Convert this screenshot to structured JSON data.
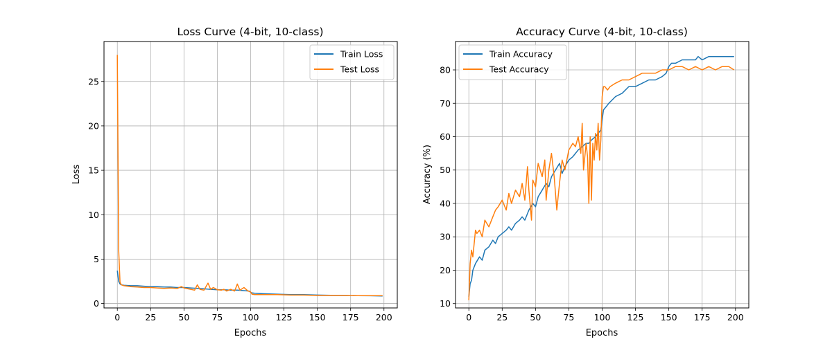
{
  "colors": {
    "train": "#1f77b4",
    "test": "#ff7f0e",
    "grid": "#b0b0b0"
  },
  "chart_data": [
    {
      "type": "line",
      "title": "Loss Curve (4-bit, 10-class)",
      "xlabel": "Epochs",
      "ylabel": "Loss",
      "xlim": [
        -10,
        210
      ],
      "ylim": [
        -0.5,
        29.5
      ],
      "xticks": [
        0,
        25,
        50,
        75,
        100,
        125,
        150,
        175,
        200
      ],
      "yticks": [
        0,
        5,
        10,
        15,
        20,
        25
      ],
      "grid": true,
      "legend_position": "top-right",
      "series": [
        {
          "name": "Train Loss",
          "x": [
            0,
            1,
            2,
            3,
            5,
            10,
            15,
            20,
            25,
            30,
            35,
            40,
            45,
            50,
            55,
            60,
            65,
            70,
            75,
            80,
            85,
            90,
            95,
            99,
            100,
            101,
            103,
            110,
            120,
            130,
            140,
            150,
            160,
            170,
            180,
            190,
            199
          ],
          "y": [
            3.7,
            2.5,
            2.2,
            2.1,
            2.05,
            2.0,
            2.0,
            1.95,
            1.9,
            1.9,
            1.85,
            1.85,
            1.8,
            1.8,
            1.75,
            1.7,
            1.65,
            1.6,
            1.55,
            1.55,
            1.5,
            1.5,
            1.45,
            1.4,
            1.25,
            1.2,
            1.15,
            1.1,
            1.05,
            1.0,
            1.0,
            0.95,
            0.92,
            0.9,
            0.88,
            0.87,
            0.85
          ]
        },
        {
          "name": "Test Loss",
          "x": [
            0,
            1,
            2,
            3,
            5,
            8,
            10,
            15,
            20,
            25,
            30,
            35,
            40,
            45,
            48,
            50,
            55,
            58,
            60,
            62,
            65,
            68,
            70,
            72,
            75,
            78,
            80,
            82,
            85,
            88,
            90,
            92,
            95,
            98,
            100,
            101,
            103,
            110,
            120,
            130,
            140,
            150,
            160,
            170,
            180,
            190,
            199
          ],
          "y": [
            28.0,
            6.0,
            2.4,
            2.1,
            2.0,
            1.95,
            1.9,
            1.85,
            1.8,
            1.8,
            1.75,
            1.7,
            1.75,
            1.7,
            1.9,
            1.75,
            1.6,
            1.5,
            2.1,
            1.6,
            1.5,
            2.3,
            1.6,
            1.8,
            1.55,
            1.5,
            1.6,
            1.4,
            1.6,
            1.4,
            2.2,
            1.5,
            1.8,
            1.4,
            1.3,
            1.05,
            1.0,
            1.0,
            1.0,
            0.95,
            0.95,
            0.9,
            0.9,
            0.9,
            0.88,
            0.88,
            0.88
          ]
        }
      ]
    },
    {
      "type": "line",
      "title": "Accuracy Curve (4-bit, 10-class)",
      "xlabel": "Epochs",
      "ylabel": "Accuracy (%)",
      "xlim": [
        -10,
        210
      ],
      "ylim": [
        8.7,
        88.5
      ],
      "xticks": [
        0,
        25,
        50,
        75,
        100,
        125,
        150,
        175,
        200
      ],
      "yticks": [
        10,
        20,
        30,
        40,
        50,
        60,
        70,
        80
      ],
      "grid": true,
      "legend_position": "top-left",
      "series": [
        {
          "name": "Train Accuracy",
          "x": [
            0,
            1,
            2,
            3,
            5,
            8,
            10,
            12,
            15,
            18,
            20,
            22,
            25,
            28,
            30,
            32,
            35,
            38,
            40,
            42,
            45,
            48,
            50,
            52,
            55,
            58,
            60,
            62,
            65,
            68,
            70,
            72,
            75,
            78,
            80,
            82,
            85,
            88,
            90,
            92,
            95,
            97,
            99,
            100,
            101,
            103,
            105,
            110,
            115,
            120,
            125,
            130,
            135,
            140,
            145,
            148,
            150,
            152,
            155,
            160,
            165,
            170,
            172,
            175,
            180,
            185,
            190,
            195,
            199
          ],
          "y": [
            12,
            16,
            17,
            20,
            22,
            24,
            23,
            26,
            27,
            29,
            28,
            30,
            31,
            32,
            33,
            32,
            34,
            35,
            36,
            35,
            38,
            40,
            39,
            42,
            44,
            46,
            45,
            48,
            50,
            52,
            49,
            51,
            53,
            54,
            55,
            56,
            57,
            58,
            58,
            59,
            60,
            61,
            62,
            65,
            68,
            69,
            70,
            72,
            73,
            75,
            75,
            76,
            77,
            77,
            78,
            79,
            81,
            82,
            82,
            83,
            83,
            83,
            84,
            83,
            84,
            84,
            84,
            84,
            84
          ]
        },
        {
          "name": "Test Accuracy",
          "x": [
            0,
            1,
            2,
            3,
            4,
            5,
            6,
            8,
            10,
            12,
            15,
            18,
            20,
            22,
            25,
            28,
            30,
            32,
            35,
            38,
            40,
            42,
            44,
            45,
            47,
            48,
            50,
            52,
            55,
            57,
            58,
            60,
            62,
            64,
            66,
            67,
            68,
            70,
            72,
            75,
            78,
            80,
            82,
            84,
            85,
            86,
            88,
            89,
            90,
            91,
            92,
            93,
            94,
            95,
            96,
            97,
            98,
            99,
            100,
            101,
            102,
            104,
            106,
            110,
            115,
            120,
            125,
            130,
            135,
            140,
            145,
            150,
            155,
            160,
            165,
            170,
            175,
            180,
            185,
            190,
            195,
            199
          ],
          "y": [
            11,
            22,
            26,
            24,
            28,
            32,
            31,
            32,
            30,
            35,
            33,
            36,
            38,
            39,
            41,
            38,
            43,
            40,
            44,
            42,
            46,
            41,
            51,
            44,
            35,
            47,
            45,
            52,
            48,
            53,
            41,
            50,
            55,
            48,
            38,
            42,
            46,
            53,
            50,
            56,
            58,
            57,
            60,
            55,
            64,
            50,
            58,
            54,
            40,
            60,
            41,
            58,
            53,
            61,
            56,
            64,
            53,
            59,
            72,
            75,
            75,
            74,
            75,
            76,
            77,
            77,
            78,
            79,
            79,
            79,
            80,
            80,
            81,
            81,
            80,
            81,
            80,
            81,
            80,
            81,
            81,
            80
          ]
        }
      ]
    }
  ]
}
